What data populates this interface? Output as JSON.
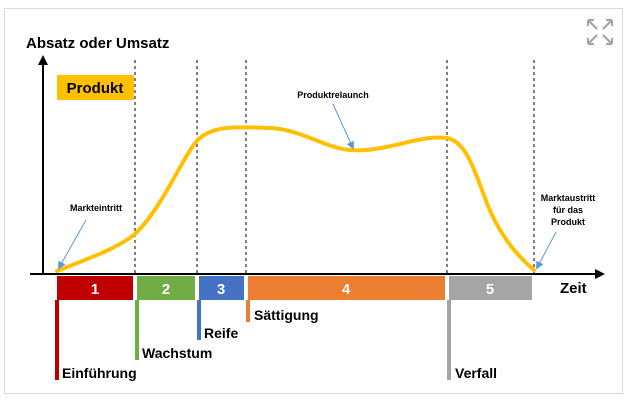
{
  "diagram": {
    "y_axis_label": "Absatz oder Umsatz",
    "x_axis_label": "Zeit",
    "product_box_label": "Produkt",
    "annotations": {
      "markteintritt": "Markteintritt",
      "produktrelaunch": "Produktrelaunch",
      "marktaustritt": [
        "Marktaustritt",
        "für das",
        "Produkt"
      ]
    },
    "phases": [
      {
        "number": "1",
        "label": "Einführung",
        "color": "#c00000"
      },
      {
        "number": "2",
        "label": "Wachstum",
        "color": "#70ad47"
      },
      {
        "number": "3",
        "label": "Reife",
        "color": "#4472c4"
      },
      {
        "number": "4",
        "label": "Sättigung",
        "color": "#ed7d31"
      },
      {
        "number": "5",
        "label": "Verfall",
        "color": "#a5a5a5"
      }
    ],
    "curve_color": "#ffc000",
    "product_box_color": "#ffc000",
    "expand_icon": "expand-arrows-icon"
  }
}
